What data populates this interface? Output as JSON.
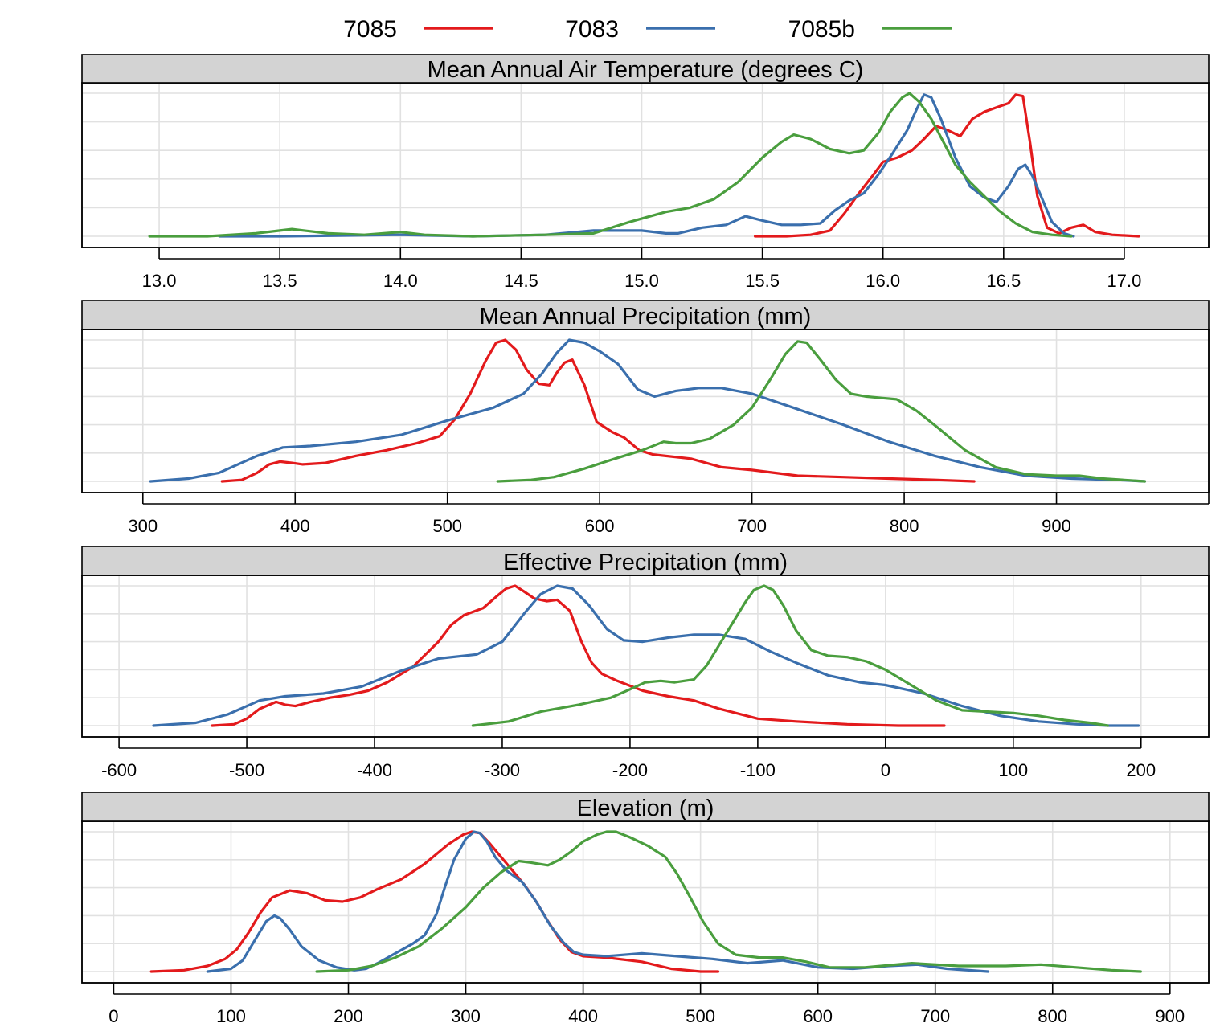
{
  "legend": [
    {
      "name": "7085",
      "color": "#e31a1c"
    },
    {
      "name": "7083",
      "color": "#3a6fad"
    },
    {
      "name": "7085b",
      "color": "#4a9e3e"
    }
  ],
  "chart_data": [
    {
      "type": "line",
      "subtype": "density",
      "title": "Mean Annual Air Temperature (degrees C)",
      "xlim": [
        12.68,
        17.35
      ],
      "xticks": [
        13.0,
        13.5,
        14.0,
        14.5,
        15.0,
        15.5,
        16.0,
        16.5,
        17.0
      ],
      "xtick_labels": [
        "13.0",
        "13.5",
        "14.0",
        "14.5",
        "15.0",
        "15.5",
        "16.0",
        "16.5",
        "17.0"
      ],
      "grid": true,
      "series": [
        {
          "name": "7085",
          "x": [
            15.47,
            15.6,
            15.7,
            15.78,
            15.84,
            15.9,
            15.96,
            16.0,
            16.06,
            16.12,
            16.17,
            16.22,
            16.27,
            16.32,
            16.37,
            16.42,
            16.47,
            16.52,
            16.55,
            16.58,
            16.61,
            16.64,
            16.68,
            16.73,
            16.78,
            16.83,
            16.88,
            16.95,
            17.06
          ],
          "y": [
            0.0,
            0.0,
            0.01,
            0.04,
            0.16,
            0.3,
            0.43,
            0.52,
            0.55,
            0.6,
            0.68,
            0.77,
            0.74,
            0.7,
            0.82,
            0.87,
            0.9,
            0.93,
            0.99,
            0.98,
            0.65,
            0.28,
            0.06,
            0.02,
            0.06,
            0.08,
            0.03,
            0.01,
            0.0
          ]
        },
        {
          "name": "7083",
          "x": [
            13.25,
            13.5,
            14.0,
            14.3,
            14.6,
            14.8,
            15.0,
            15.1,
            15.15,
            15.25,
            15.35,
            15.43,
            15.5,
            15.58,
            15.66,
            15.74,
            15.8,
            15.86,
            15.92,
            15.98,
            16.04,
            16.1,
            16.14,
            16.17,
            16.2,
            16.24,
            16.3,
            16.36,
            16.42,
            16.47,
            16.52,
            16.56,
            16.59,
            16.62,
            16.66,
            16.7,
            16.75,
            16.79
          ],
          "y": [
            0.0,
            0.0,
            0.01,
            0.0,
            0.01,
            0.04,
            0.04,
            0.02,
            0.02,
            0.06,
            0.08,
            0.14,
            0.11,
            0.08,
            0.08,
            0.09,
            0.18,
            0.25,
            0.3,
            0.43,
            0.58,
            0.74,
            0.89,
            0.99,
            0.97,
            0.82,
            0.55,
            0.35,
            0.27,
            0.24,
            0.35,
            0.47,
            0.5,
            0.42,
            0.26,
            0.1,
            0.02,
            0.0
          ]
        },
        {
          "name": "7085b",
          "x": [
            12.96,
            13.2,
            13.4,
            13.55,
            13.7,
            13.85,
            14.0,
            14.1,
            14.3,
            14.6,
            14.8,
            14.95,
            15.1,
            15.2,
            15.3,
            15.4,
            15.5,
            15.58,
            15.63,
            15.7,
            15.78,
            15.86,
            15.92,
            15.98,
            16.03,
            16.08,
            16.11,
            16.15,
            16.2,
            16.25,
            16.3,
            16.36,
            16.42,
            16.48,
            16.55,
            16.62,
            16.7,
            16.78
          ],
          "y": [
            0.0,
            0.0,
            0.02,
            0.05,
            0.02,
            0.01,
            0.03,
            0.01,
            0.0,
            0.01,
            0.02,
            0.1,
            0.17,
            0.2,
            0.26,
            0.38,
            0.55,
            0.66,
            0.71,
            0.68,
            0.61,
            0.58,
            0.6,
            0.72,
            0.87,
            0.97,
            1.0,
            0.94,
            0.82,
            0.66,
            0.5,
            0.38,
            0.28,
            0.18,
            0.09,
            0.03,
            0.01,
            0.0
          ]
        }
      ]
    },
    {
      "type": "line",
      "subtype": "density",
      "title": "Mean Annual Precipitation (mm)",
      "xlim": [
        260,
        1000
      ],
      "xticks": [
        300,
        400,
        500,
        600,
        700,
        800,
        900,
        1000
      ],
      "xtick_labels": [
        "300",
        "400",
        "500",
        "600",
        "700",
        "800",
        "900",
        ""
      ],
      "grid": true,
      "series": [
        {
          "name": "7085",
          "x": [
            352,
            365,
            375,
            383,
            390,
            398,
            405,
            420,
            440,
            460,
            480,
            495,
            505,
            515,
            525,
            532,
            538,
            545,
            552,
            560,
            567,
            572,
            577,
            582,
            590,
            598,
            608,
            616,
            626,
            635,
            660,
            680,
            700,
            730,
            760,
            790,
            820,
            846
          ],
          "y": [
            0.0,
            0.01,
            0.06,
            0.12,
            0.14,
            0.13,
            0.12,
            0.13,
            0.18,
            0.22,
            0.27,
            0.32,
            0.44,
            0.62,
            0.85,
            0.98,
            1.0,
            0.93,
            0.79,
            0.69,
            0.68,
            0.77,
            0.84,
            0.86,
            0.68,
            0.42,
            0.35,
            0.31,
            0.22,
            0.19,
            0.16,
            0.1,
            0.08,
            0.04,
            0.03,
            0.02,
            0.01,
            0.0
          ]
        },
        {
          "name": "7083",
          "x": [
            305,
            330,
            350,
            375,
            392,
            410,
            440,
            470,
            500,
            530,
            550,
            562,
            572,
            580,
            590,
            600,
            612,
            625,
            636,
            650,
            665,
            680,
            700,
            730,
            760,
            790,
            820,
            850,
            880,
            910,
            940,
            958
          ],
          "y": [
            0.0,
            0.02,
            0.06,
            0.18,
            0.24,
            0.25,
            0.28,
            0.33,
            0.43,
            0.52,
            0.62,
            0.76,
            0.91,
            1.0,
            0.98,
            0.92,
            0.83,
            0.65,
            0.6,
            0.64,
            0.66,
            0.66,
            0.62,
            0.51,
            0.4,
            0.28,
            0.18,
            0.1,
            0.04,
            0.02,
            0.01,
            0.0
          ]
        },
        {
          "name": "7085b",
          "x": [
            533,
            555,
            570,
            590,
            610,
            628,
            642,
            650,
            660,
            672,
            688,
            700,
            712,
            722,
            730,
            736,
            745,
            755,
            765,
            775,
            785,
            795,
            808,
            822,
            840,
            860,
            880,
            900,
            915,
            930,
            958
          ],
          "y": [
            0.0,
            0.01,
            0.03,
            0.09,
            0.16,
            0.22,
            0.28,
            0.27,
            0.27,
            0.3,
            0.4,
            0.52,
            0.72,
            0.9,
            0.99,
            0.98,
            0.86,
            0.72,
            0.62,
            0.6,
            0.59,
            0.58,
            0.5,
            0.38,
            0.22,
            0.1,
            0.05,
            0.04,
            0.04,
            0.02,
            0.0
          ]
        }
      ]
    },
    {
      "type": "line",
      "subtype": "density",
      "title": "Effective Precipitation (mm)",
      "xlim": [
        -629,
        253
      ],
      "xticks": [
        -600,
        -500,
        -400,
        -300,
        -200,
        -100,
        0,
        100,
        200
      ],
      "xtick_labels": [
        "-600",
        "-500",
        "-400",
        "-300",
        "-200",
        "-100",
        "0",
        "100",
        "200"
      ],
      "grid": true,
      "series": [
        {
          "name": "7085",
          "x": [
            -527,
            -510,
            -500,
            -490,
            -477,
            -470,
            -462,
            -450,
            -435,
            -420,
            -405,
            -390,
            -370,
            -350,
            -340,
            -330,
            -315,
            -305,
            -297,
            -290,
            -283,
            -275,
            -265,
            -257,
            -247,
            -238,
            -230,
            -222,
            -210,
            -190,
            -170,
            -150,
            -130,
            -100,
            -70,
            -30,
            10,
            46
          ],
          "y": [
            0.0,
            0.01,
            0.05,
            0.12,
            0.17,
            0.15,
            0.14,
            0.17,
            0.2,
            0.22,
            0.25,
            0.31,
            0.42,
            0.6,
            0.72,
            0.79,
            0.84,
            0.92,
            0.98,
            1.0,
            0.96,
            0.91,
            0.89,
            0.9,
            0.82,
            0.6,
            0.45,
            0.37,
            0.32,
            0.25,
            0.21,
            0.18,
            0.12,
            0.05,
            0.03,
            0.01,
            0.0,
            0.0
          ]
        },
        {
          "name": "7083",
          "x": [
            -573,
            -540,
            -515,
            -490,
            -470,
            -440,
            -410,
            -380,
            -350,
            -320,
            -300,
            -283,
            -270,
            -257,
            -245,
            -232,
            -218,
            -205,
            -190,
            -170,
            -150,
            -130,
            -110,
            -90,
            -70,
            -45,
            -20,
            0,
            30,
            60,
            90,
            120,
            150,
            175,
            198
          ],
          "y": [
            0.0,
            0.02,
            0.08,
            0.18,
            0.21,
            0.23,
            0.28,
            0.39,
            0.48,
            0.51,
            0.6,
            0.8,
            0.94,
            1.0,
            0.98,
            0.86,
            0.69,
            0.61,
            0.6,
            0.63,
            0.65,
            0.65,
            0.62,
            0.53,
            0.45,
            0.36,
            0.31,
            0.29,
            0.23,
            0.14,
            0.07,
            0.03,
            0.01,
            0.0,
            0.0
          ]
        },
        {
          "name": "7085b",
          "x": [
            -323,
            -295,
            -270,
            -240,
            -215,
            -200,
            -188,
            -176,
            -165,
            -150,
            -140,
            -130,
            -120,
            -110,
            -103,
            -95,
            -88,
            -80,
            -70,
            -58,
            -45,
            -30,
            -15,
            0,
            20,
            40,
            60,
            80,
            100,
            120,
            140,
            160,
            174
          ],
          "y": [
            0.0,
            0.03,
            0.1,
            0.15,
            0.2,
            0.26,
            0.31,
            0.32,
            0.31,
            0.33,
            0.43,
            0.58,
            0.73,
            0.88,
            0.97,
            1.0,
            0.97,
            0.86,
            0.68,
            0.54,
            0.5,
            0.49,
            0.46,
            0.4,
            0.29,
            0.18,
            0.11,
            0.1,
            0.09,
            0.07,
            0.04,
            0.02,
            0.0
          ]
        }
      ]
    },
    {
      "type": "line",
      "subtype": "density",
      "title": "Elevation (m)",
      "xlim": [
        -27,
        933
      ],
      "xticks": [
        0,
        100,
        200,
        300,
        400,
        500,
        600,
        700,
        800,
        900
      ],
      "xtick_labels": [
        "0",
        "100",
        "200",
        "300",
        "400",
        "500",
        "600",
        "700",
        "800",
        "900"
      ],
      "grid": true,
      "series": [
        {
          "name": "7085",
          "x": [
            32,
            60,
            80,
            95,
            105,
            115,
            125,
            135,
            150,
            165,
            180,
            195,
            210,
            225,
            245,
            265,
            285,
            298,
            305,
            312,
            320,
            330,
            340,
            350,
            360,
            370,
            380,
            390,
            400,
            420,
            450,
            475,
            500,
            515
          ],
          "y": [
            0.0,
            0.01,
            0.04,
            0.09,
            0.16,
            0.28,
            0.42,
            0.53,
            0.58,
            0.56,
            0.51,
            0.5,
            0.53,
            0.59,
            0.66,
            0.77,
            0.91,
            0.98,
            1.0,
            0.99,
            0.92,
            0.82,
            0.72,
            0.62,
            0.5,
            0.36,
            0.23,
            0.14,
            0.11,
            0.1,
            0.07,
            0.02,
            0.0,
            0.0
          ]
        },
        {
          "name": "7083",
          "x": [
            80,
            100,
            110,
            120,
            130,
            137,
            142,
            150,
            160,
            175,
            190,
            205,
            215,
            225,
            240,
            255,
            265,
            275,
            282,
            290,
            300,
            307,
            312,
            318,
            325,
            335,
            348,
            360,
            372,
            383,
            392,
            400,
            420,
            450,
            480,
            510,
            540,
            570,
            600,
            630,
            660,
            685,
            710,
            745
          ],
          "y": [
            0.0,
            0.02,
            0.08,
            0.22,
            0.36,
            0.4,
            0.38,
            0.3,
            0.18,
            0.08,
            0.03,
            0.01,
            0.02,
            0.06,
            0.13,
            0.2,
            0.26,
            0.41,
            0.6,
            0.8,
            0.95,
            1.0,
            0.99,
            0.93,
            0.82,
            0.72,
            0.64,
            0.5,
            0.33,
            0.21,
            0.14,
            0.12,
            0.11,
            0.13,
            0.11,
            0.09,
            0.06,
            0.08,
            0.03,
            0.02,
            0.04,
            0.05,
            0.02,
            0.0
          ]
        },
        {
          "name": "7085b",
          "x": [
            173,
            200,
            220,
            240,
            260,
            280,
            300,
            315,
            330,
            345,
            355,
            370,
            380,
            390,
            400,
            412,
            420,
            428,
            440,
            455,
            470,
            480,
            490,
            502,
            515,
            530,
            550,
            570,
            590,
            610,
            640,
            680,
            720,
            760,
            790,
            820,
            850,
            875
          ],
          "y": [
            0.0,
            0.01,
            0.04,
            0.1,
            0.18,
            0.31,
            0.46,
            0.6,
            0.71,
            0.79,
            0.78,
            0.76,
            0.8,
            0.86,
            0.93,
            0.98,
            1.0,
            1.0,
            0.96,
            0.9,
            0.82,
            0.7,
            0.55,
            0.36,
            0.2,
            0.12,
            0.1,
            0.1,
            0.07,
            0.03,
            0.03,
            0.06,
            0.04,
            0.04,
            0.05,
            0.03,
            0.01,
            0.0
          ]
        }
      ]
    }
  ]
}
